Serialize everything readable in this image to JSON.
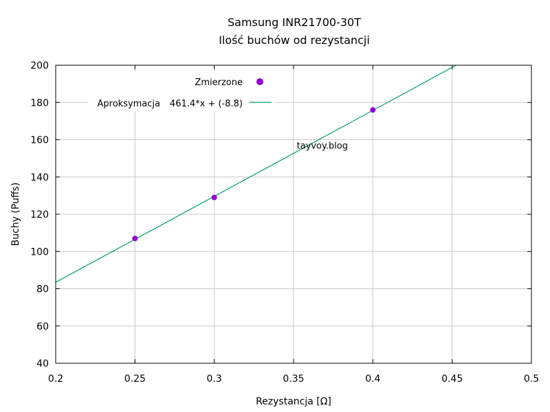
{
  "chart_data": {
    "type": "scatter",
    "title": "Samsung INR21700-30T",
    "subtitle": "Ilość buchów od rezystancji",
    "xlabel": "Rezystancja [Ω]",
    "ylabel": "Buchy (Puffs)",
    "xlim": [
      0.2,
      0.5
    ],
    "ylim": [
      40,
      200
    ],
    "xticks": [
      "0.2",
      "0.25",
      "0.3",
      "0.35",
      "0.4",
      "0.45",
      "0.5"
    ],
    "yticks": [
      "40",
      "60",
      "80",
      "100",
      "120",
      "140",
      "160",
      "180",
      "200"
    ],
    "grid": true,
    "legend_position": "top-left",
    "series": [
      {
        "name": "Zmierzone",
        "kind": "points",
        "color": "#9400d3",
        "x": [
          0.25,
          0.3,
          0.4
        ],
        "y": [
          107,
          129,
          176
        ]
      },
      {
        "name": "Aproksymacja",
        "kind": "line",
        "color": "#009e73",
        "label": "461.4*x + (-8.8)",
        "slope": 461.4,
        "intercept": -8.8
      }
    ],
    "annotation": {
      "text": "tayvoy.blog",
      "color": "#0000ff",
      "x": 0.352,
      "y": 157
    }
  }
}
